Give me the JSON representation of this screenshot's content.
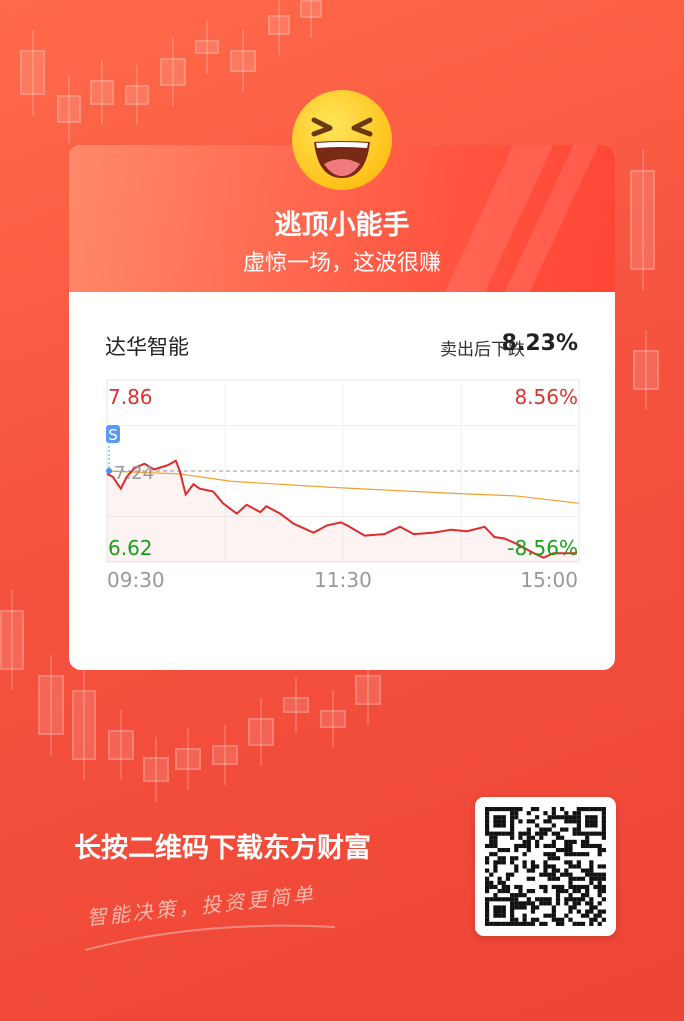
{
  "card": {
    "title": "逃顶小能手",
    "subtitle": "虚惊一场，这波很赚",
    "emoji": "laughing-face-icon"
  },
  "stock": {
    "name": "达华智能",
    "drop_label": "卖出后下跌",
    "drop_value": "8.23%"
  },
  "chart_data": {
    "type": "line",
    "price_max": "7.86",
    "price_min": "6.62",
    "prev_close": "7.24",
    "pct_max": "8.56%",
    "pct_min": "-8.56%",
    "x_ticks": [
      "09:30",
      "11:30",
      "15:00"
    ],
    "ylim": [
      6.62,
      7.86
    ],
    "sell_marker": {
      "label": "S",
      "time": "09:30",
      "price": 7.24
    },
    "colors": {
      "price": "#e02a2a",
      "avg": "#f0a030",
      "up": "#e03030",
      "down": "#1aa01a"
    },
    "series": [
      {
        "key": "price",
        "points": [
          [
            "09:30",
            7.22
          ],
          [
            "09:33",
            7.2
          ],
          [
            "09:37",
            7.12
          ],
          [
            "09:40",
            7.2
          ],
          [
            "09:44",
            7.26
          ],
          [
            "09:49",
            7.29
          ],
          [
            "09:54",
            7.25
          ],
          [
            "10:01",
            7.28
          ],
          [
            "10:05",
            7.31
          ],
          [
            "10:07",
            7.24
          ],
          [
            "10:10",
            7.08
          ],
          [
            "10:14",
            7.15
          ],
          [
            "10:17",
            7.12
          ],
          [
            "10:24",
            7.1
          ],
          [
            "10:29",
            7.02
          ],
          [
            "10:36",
            6.95
          ],
          [
            "10:41",
            7.01
          ],
          [
            "10:48",
            6.96
          ],
          [
            "10:51",
            7.0
          ],
          [
            "10:58",
            6.95
          ],
          [
            "11:05",
            6.88
          ],
          [
            "11:10",
            6.85
          ],
          [
            "11:15",
            6.82
          ],
          [
            "11:22",
            6.87
          ],
          [
            "11:29",
            6.89
          ],
          [
            "13:02",
            6.87
          ],
          [
            "13:11",
            6.8
          ],
          [
            "13:21",
            6.81
          ],
          [
            "13:29",
            6.86
          ],
          [
            "13:36",
            6.81
          ],
          [
            "13:46",
            6.82
          ],
          [
            "13:55",
            6.84
          ],
          [
            "14:03",
            6.83
          ],
          [
            "14:12",
            6.86
          ],
          [
            "14:17",
            6.79
          ],
          [
            "14:22",
            6.78
          ],
          [
            "14:29",
            6.74
          ],
          [
            "14:37",
            6.68
          ],
          [
            "14:42",
            6.65
          ],
          [
            "14:47",
            6.68
          ],
          [
            "14:54",
            6.68
          ],
          [
            "14:59",
            6.68
          ]
        ]
      },
      {
        "key": "avg",
        "points": [
          [
            "09:30",
            7.24
          ],
          [
            "10:07",
            7.22
          ],
          [
            "10:33",
            7.17
          ],
          [
            "11:22",
            7.13
          ],
          [
            "13:52",
            7.09
          ],
          [
            "14:28",
            7.07
          ],
          [
            "15:00",
            7.02
          ]
        ]
      }
    ]
  },
  "footer": {
    "download_text": "长按二维码下载东方财富",
    "slogan": "智能决策，投资更简单",
    "qr": "qr-code-icon"
  }
}
